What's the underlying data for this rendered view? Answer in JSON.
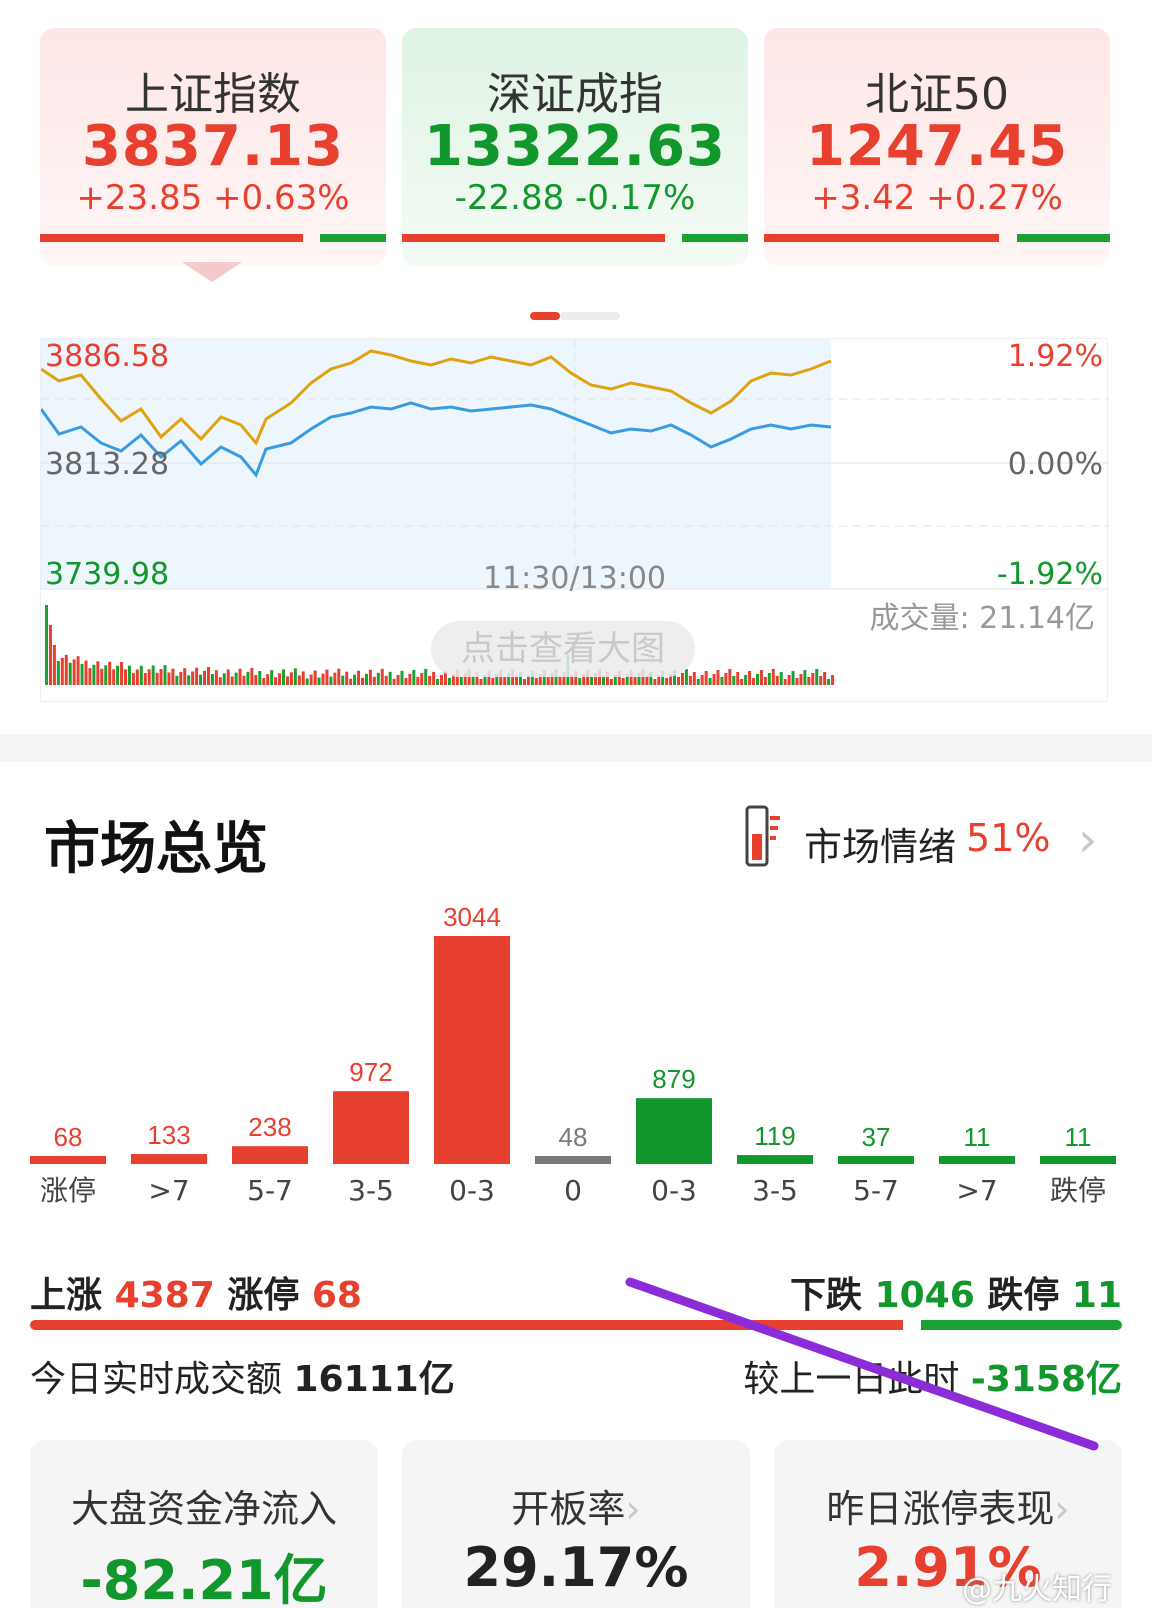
{
  "indices": [
    {
      "name": "上证指数",
      "price": "3837.13",
      "change": "+23.85 +0.63%",
      "trend": "up",
      "up_ratio": 0.78
    },
    {
      "name": "深证成指",
      "price": "13322.63",
      "change": "-22.88 -0.17%",
      "trend": "down",
      "up_ratio": 0.78
    },
    {
      "name": "北证50",
      "price": "1247.45",
      "change": "+3.42 +0.27%",
      "trend": "up",
      "up_ratio": 0.68
    }
  ],
  "chart": {
    "price_high": "3886.58",
    "price_base": "3813.28",
    "price_low": "3739.98",
    "pct_high": "1.92%",
    "pct_base": "0.00%",
    "pct_low": "-1.92%",
    "time_label": "11:30/13:00",
    "volume_label": "成交量: 21.14亿",
    "big_view_label": "点击查看大图"
  },
  "overview": {
    "title": "市场总览",
    "mood_label": "市场情绪",
    "mood_value": "51%",
    "distribution": {
      "type": "bar",
      "categories": [
        "涨停",
        ">7",
        "5-7",
        "3-5",
        "0-3",
        "0",
        "0-3",
        "3-5",
        "5-7",
        ">7",
        "跌停"
      ],
      "values": [
        68,
        133,
        238,
        972,
        3044,
        48,
        879,
        119,
        37,
        11,
        11
      ],
      "groups": [
        "up",
        "up",
        "up",
        "up",
        "up",
        "flat",
        "down",
        "down",
        "down",
        "down",
        "down"
      ]
    },
    "rise_label": "上涨",
    "rise_count": "4387",
    "limit_up_label": "涨停",
    "limit_up_count": "68",
    "fall_label": "下跌",
    "fall_count": "1046",
    "limit_down_label": "跌停",
    "limit_down_count": "11",
    "turnover_label": "今日实时成交额",
    "turnover_value": "16111亿",
    "compare_label": "较上一日此时",
    "compare_value": "-3158亿"
  },
  "stats": [
    {
      "title": "大盘资金净流入",
      "value": "-82.21亿",
      "has_arrow": false
    },
    {
      "title": "开板率",
      "value": "29.17%",
      "has_arrow": true
    },
    {
      "title": "昨日涨停表现",
      "value": "2.91%",
      "has_arrow": true
    }
  ],
  "watermark": "@九火知行",
  "colors": {
    "up": "#e8402f",
    "down": "#12972d",
    "flat": "#7a7a7a",
    "line_price": "#e0a20f",
    "line_avg": "#3a9be0"
  }
}
